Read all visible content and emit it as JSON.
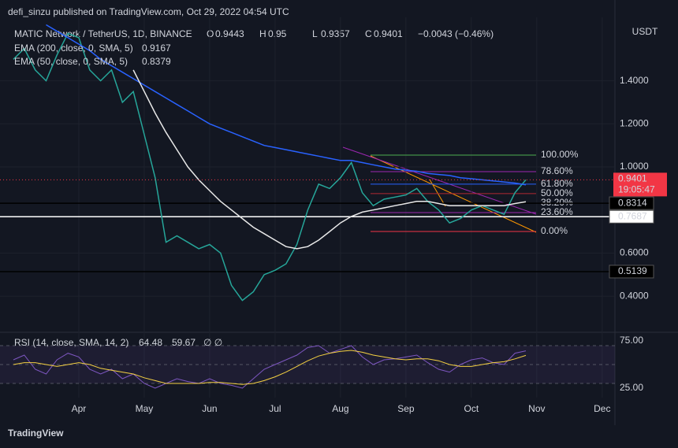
{
  "header": {
    "published": "defi_sinzu published on TradingView.com, Oct 29, 2022 04:54 UTC",
    "symbol": "MATIC Network / TetherUS, 1D, BINANCE",
    "ohlc": [
      {
        "label": "O",
        "value": 0.9443
      },
      {
        "label": "H",
        "value": 0.95
      },
      {
        "label": "L",
        "value": 0.9357
      },
      {
        "label": "C"
      }
    ],
    "change": "−0.0043 (−0.46%)"
  },
  "chart_data": [
    {
      "type": "line",
      "y_axis_label": "USDT",
      "categories": [
        null,
        null,
        null,
        null,
        null,
        null,
        "Apr",
        null,
        null,
        null,
        null,
        null,
        "May",
        null,
        null,
        null,
        null,
        null,
        "Jun",
        null,
        null,
        null,
        null,
        null,
        "Jul",
        null,
        null,
        null,
        null,
        null,
        "Aug",
        null,
        null,
        null,
        null,
        null,
        "Sep",
        null,
        null,
        null,
        null,
        null,
        "Oct",
        null,
        null,
        null,
        null,
        null,
        "Nov",
        null,
        null,
        null,
        null,
        null,
        "Dec"
      ],
      "series": [
        {
          "color": "#26a69a",
          "values": [
            1.5,
            1.55,
            1.45,
            1.4,
            1.52,
            1.62,
            1.6,
            1.45,
            1.4,
            1.45,
            1.3,
            1.35,
            1.15,
            0.95,
            0.65,
            0.68,
            0.65,
            0.62,
            0.64,
            0.6,
            0.45,
            0.38,
            0.42,
            0.5,
            0.52,
            0.55,
            0.64,
            0.8,
            0.92,
            0.9,
            0.95,
            1.02,
            0.88,
            0.82,
            0.85,
            0.86,
            0.87,
            0.9,
            0.84,
            0.8,
            0.74,
            0.76,
            0.8,
            0.82,
            0.8,
            0.78,
            0.88,
            0.9401,
            null,
            null,
            null,
            null,
            null,
            null,
            null
          ]
        },
        {
          "name": "EMA (200, close, 0, SMA, 5)",
          "color": "#2962ff",
          "values": [
            null,
            null,
            null,
            1.66,
            1.63,
            1.6,
            1.57,
            1.54,
            1.5,
            1.47,
            1.44,
            1.41,
            1.38,
            1.35,
            1.32,
            1.29,
            1.26,
            1.23,
            1.2,
            1.18,
            1.16,
            1.14,
            1.12,
            1.1,
            1.09,
            1.08,
            1.07,
            1.06,
            1.05,
            1.04,
            1.03,
            1.03,
            1.02,
            1.01,
            1.0,
            0.99,
            0.985,
            0.98,
            0.97,
            0.965,
            0.96,
            0.95,
            0.945,
            0.94,
            0.935,
            0.93,
            0.925,
            0.9167,
            null,
            null,
            null,
            null,
            null,
            null,
            null
          ]
        },
        {
          "name": "EMA (50, close, 0, SMA, 5)",
          "color": "#e8e8e8",
          "values": [
            null,
            null,
            null,
            null,
            null,
            null,
            null,
            null,
            null,
            null,
            null,
            1.45,
            1.35,
            1.25,
            1.16,
            1.08,
            1.0,
            0.94,
            0.89,
            0.84,
            0.8,
            0.76,
            0.72,
            0.69,
            0.66,
            0.63,
            0.62,
            0.63,
            0.66,
            0.7,
            0.74,
            0.77,
            0.79,
            0.8,
            0.81,
            0.82,
            0.83,
            0.84,
            0.84,
            0.83,
            0.82,
            0.82,
            0.82,
            0.82,
            0.82,
            0.82,
            0.83,
            0.8379,
            null,
            null,
            null,
            null,
            null,
            null,
            null
          ]
        }
      ],
      "ylim": [
        0.2395,
        1.6947
      ],
      "yticks": [
        {
          "value": 1.4,
          "label": "1.4000"
        },
        {
          "value": 1.2,
          "label": "1.2000"
        },
        {
          "value": 1.0,
          "label": "1.0000"
        },
        {
          "value": 0.6,
          "label": "0.6000"
        },
        {
          "value": 0.4,
          "label": "0.4000"
        }
      ],
      "countdown": "19:05:47",
      "levels": [
        {
          "value": 0.8314,
          "color": "#000000",
          "text_color": "#ffffff"
        },
        {
          "value": 0.7687,
          "color": "#ffffff",
          "text_color": "#000000"
        },
        {
          "value": 0.5139,
          "color": "#000000",
          "text_color": "#ffffff"
        }
      ],
      "fib": {
        "prices": [
          1.055,
          0.978,
          0.92,
          0.876,
          0.832,
          0.788,
          0.7
        ],
        "ratio_labels": [
          "100.00%",
          "78.60%",
          "61.80%",
          "50.00%",
          "38.20%",
          "23.60%",
          "0.00%"
        ],
        "colors": [
          "#4caf50",
          "#9c27b0",
          "#2962ff",
          "#b22833",
          "#ff9800",
          "#9c27b0",
          "#f23645"
        ]
      }
    },
    {
      "type": "line",
      "title": "RSI (14, close, SMA, 14, 2)",
      "extra": "∅ ∅",
      "series": [
        {
          "color": "#7e57c2",
          "values": [
            55,
            60,
            45,
            40,
            55,
            62,
            58,
            45,
            40,
            45,
            35,
            40,
            30,
            25,
            30,
            35,
            32,
            30,
            35,
            30,
            28,
            25,
            35,
            45,
            50,
            55,
            60,
            68,
            70,
            62,
            66,
            70,
            58,
            50,
            55,
            56,
            58,
            60,
            52,
            45,
            42,
            50,
            55,
            57,
            52,
            50,
            62,
            64.48,
            null,
            null,
            null,
            null,
            null,
            null,
            null
          ]
        },
        {
          "color": "#f5d142",
          "values": [
            50,
            52,
            52,
            50,
            48,
            50,
            52,
            50,
            46,
            44,
            42,
            40,
            36,
            33,
            30,
            30,
            30,
            30,
            31,
            31,
            30,
            29,
            30,
            33,
            37,
            42,
            48,
            54,
            59,
            62,
            64,
            65,
            63,
            60,
            58,
            56,
            55,
            56,
            56,
            54,
            50,
            48,
            48,
            50,
            52,
            53,
            56,
            59.67,
            null,
            null,
            null,
            null,
            null,
            null,
            null
          ]
        }
      ],
      "ylim": [
        15,
        81.67
      ],
      "yticks": [
        {
          "value": 75,
          "label": "75.00"
        },
        {
          "value": 25,
          "label": "25.00"
        }
      ],
      "band": [
        30,
        70
      ],
      "guides": [
        70,
        50,
        30
      ]
    }
  ],
  "footer": {
    "brand": "TradingView"
  }
}
